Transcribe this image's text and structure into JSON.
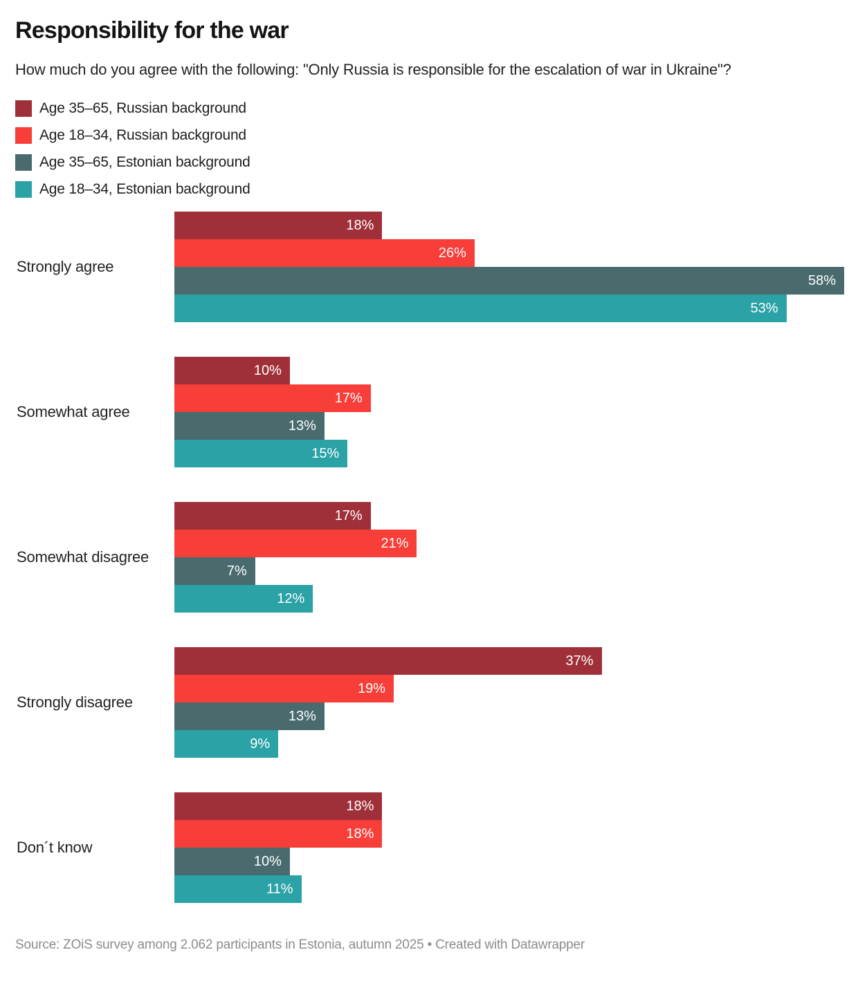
{
  "header": {
    "title": "Responsibility for the war",
    "subtitle": "How much do you agree with the following: \"Only Russia is responsible for the escalation of war in Ukraine\"?"
  },
  "legend": [
    {
      "label": "Age 35–65, Russian background",
      "color": "#9f3039"
    },
    {
      "label": "Age 18–34, Russian background",
      "color": "#f73e38"
    },
    {
      "label": "Age 35–65, Estonian background",
      "color": "#496b6e"
    },
    {
      "label": "Age 18–34, Estonian background",
      "color": "#2aa2a6"
    }
  ],
  "chart_data": {
    "type": "bar",
    "orientation": "horizontal",
    "title": "Responsibility for the war",
    "subtitle": "How much do you agree with the following: \"Only Russia is responsible for the escalation of war in Ukraine\"?",
    "categories": [
      "Strongly agree",
      "Somewhat agree",
      "Somewhat disagree",
      "Strongly disagree",
      "Don´t know"
    ],
    "series": [
      {
        "name": "Age 35–65, Russian background",
        "color": "#9f3039",
        "values": [
          18,
          10,
          17,
          37,
          18
        ]
      },
      {
        "name": "Age 18–34, Russian background",
        "color": "#f73e38",
        "values": [
          26,
          17,
          21,
          19,
          18
        ]
      },
      {
        "name": "Age 35–65, Estonian background",
        "color": "#496b6e",
        "values": [
          58,
          13,
          7,
          13,
          10
        ]
      },
      {
        "name": "Age 18–34, Estonian background",
        "color": "#2aa2a6",
        "values": [
          53,
          15,
          12,
          9,
          11
        ]
      }
    ],
    "value_suffix": "%",
    "xmax": 58,
    "grid": false,
    "label_position": "inside-end",
    "legend_position": "top-left",
    "value_label_color": "#ffffff"
  },
  "footer": {
    "text": "Source: ZOiS survey among 2.062 participants in Estonia, autumn 2025 • Created with Datawrapper"
  }
}
